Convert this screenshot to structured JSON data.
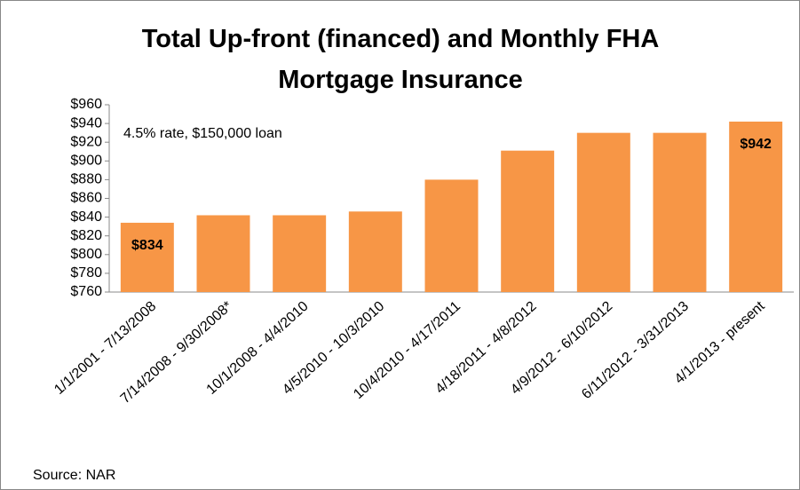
{
  "chart_data": {
    "type": "bar",
    "title": "Total Up-front (financed) and Monthly FHA Mortgage Insurance",
    "annotation": "4.5% rate, $150,000 loan",
    "source": "Source: NAR",
    "categories": [
      "1/1/2001 - 7/13/2008",
      "7/14/2008 - 9/30/2008*",
      "10/1/2008 - 4/4/2010",
      "4/5/2010 - 10/3/2010",
      "10/4/2010 - 4/17/2011",
      "4/18/2011 - 4/8/2012",
      "4/9/2012 - 6/10/2012",
      "6/11/2012 - 3/31/2013",
      "4/1/2013 - present"
    ],
    "values": [
      834,
      842,
      842,
      846,
      880,
      911,
      930,
      930,
      942
    ],
    "value_labels": [
      "$834",
      null,
      null,
      null,
      null,
      null,
      null,
      null,
      "$942"
    ],
    "color": "#f79646",
    "ylim": [
      760,
      960
    ],
    "yticks": [
      {
        "value": 760,
        "label": "$760"
      },
      {
        "value": 780,
        "label": "$780"
      },
      {
        "value": 800,
        "label": "$800"
      },
      {
        "value": 820,
        "label": "$820"
      },
      {
        "value": 840,
        "label": "$840"
      },
      {
        "value": 860,
        "label": "$860"
      },
      {
        "value": 880,
        "label": "$880"
      },
      {
        "value": 900,
        "label": "$900"
      },
      {
        "value": 920,
        "label": "$920"
      },
      {
        "value": 940,
        "label": "$940"
      },
      {
        "value": 960,
        "label": "$960"
      }
    ],
    "grid": false
  }
}
